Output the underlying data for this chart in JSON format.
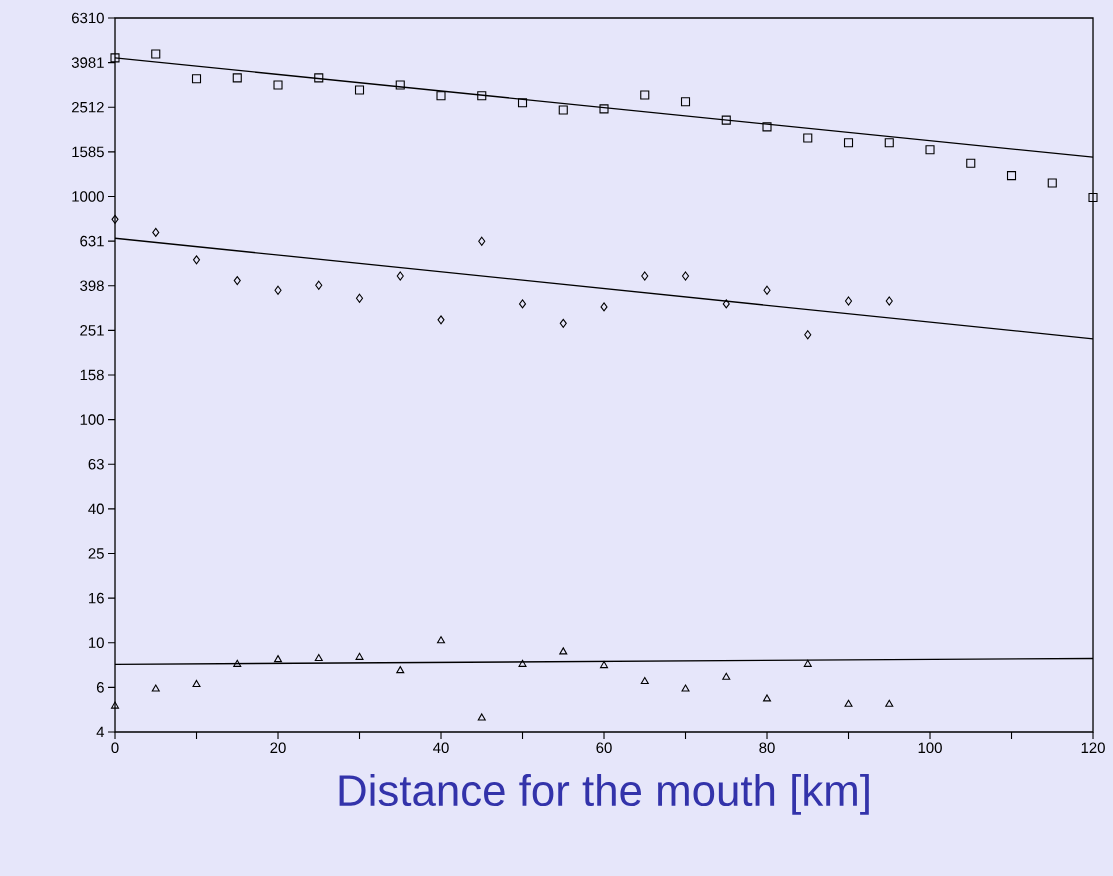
{
  "chart_data": {
    "type": "scatter",
    "xlabel": "Distance for the mouth [km]",
    "log": "y",
    "grid": false,
    "xlim": [
      0,
      120
    ],
    "xticks": [
      0,
      {
        "value": 10,
        "label": null
      },
      20,
      {
        "value": 30,
        "label": null
      },
      40,
      {
        "value": 50,
        "label": null
      },
      60,
      {
        "value": 70,
        "label": null
      },
      80,
      {
        "value": 90,
        "label": null
      },
      100,
      {
        "value": 110,
        "label": null
      },
      120
    ],
    "ylim": [
      3.981,
      6310
    ],
    "yticks": [
      {
        "value": 3.981,
        "label": "4"
      },
      {
        "value": 6.31,
        "label": "6"
      },
      10,
      {
        "value": 15.85,
        "label": "16"
      },
      {
        "value": 25.12,
        "label": "25"
      },
      {
        "value": 39.81,
        "label": "40"
      },
      {
        "value": 63.1,
        "label": "63"
      },
      100,
      {
        "value": 158.5,
        "label": "158"
      },
      {
        "value": 251.2,
        "label": "251"
      },
      {
        "value": 398.1,
        "label": "398"
      },
      {
        "value": 631,
        "label": "631"
      },
      1000,
      1585,
      2512,
      3981,
      6310
    ],
    "series": [
      {
        "marker": "square",
        "color": "#000000",
        "x": [
          0,
          5,
          10,
          15,
          20,
          25,
          30,
          35,
          40,
          45,
          50,
          55,
          60,
          65,
          70,
          75,
          80,
          85,
          90,
          95,
          100,
          105,
          110,
          115,
          120
        ],
        "values": [
          4180,
          4350,
          3370,
          3400,
          3160,
          3400,
          3000,
          3160,
          2830,
          2830,
          2630,
          2440,
          2470,
          2850,
          2660,
          2200,
          2050,
          1830,
          1740,
          1740,
          1620,
          1410,
          1240,
          1150,
          990
        ]
      },
      {
        "marker": "diamond",
        "color": "#000000",
        "x": [
          0,
          5,
          10,
          15,
          20,
          25,
          30,
          35,
          40,
          45,
          50,
          55,
          60,
          65,
          70,
          75,
          80,
          85,
          90,
          95
        ],
        "values": [
          790,
          690,
          520,
          420,
          380,
          400,
          350,
          440,
          280,
          630,
          330,
          270,
          320,
          440,
          440,
          330,
          380,
          240,
          340,
          340
        ]
      },
      {
        "marker": "triangle",
        "color": "#000000",
        "x": [
          0,
          5,
          10,
          15,
          20,
          25,
          30,
          35,
          40,
          45,
          50,
          55,
          60,
          65,
          70,
          75,
          80,
          85,
          90,
          95
        ],
        "values": [
          5.2,
          6.2,
          6.5,
          8.0,
          8.4,
          8.5,
          8.6,
          7.5,
          10.2,
          4.6,
          8.0,
          9.1,
          7.9,
          6.7,
          6.2,
          7.0,
          5.6,
          8.0,
          5.3,
          5.3
        ]
      },
      {
        "type": "line",
        "marker": "none",
        "color": "#000000",
        "x": [
          0,
          120
        ],
        "values": [
          4180,
          1500
        ]
      },
      {
        "type": "line",
        "marker": "none",
        "color": "#000000",
        "x": [
          0,
          120
        ],
        "values": [
          650,
          230
        ]
      },
      {
        "type": "line",
        "marker": "none",
        "color": "#000000",
        "x": [
          0,
          120
        ],
        "values": [
          8.0,
          8.5
        ]
      }
    ]
  }
}
